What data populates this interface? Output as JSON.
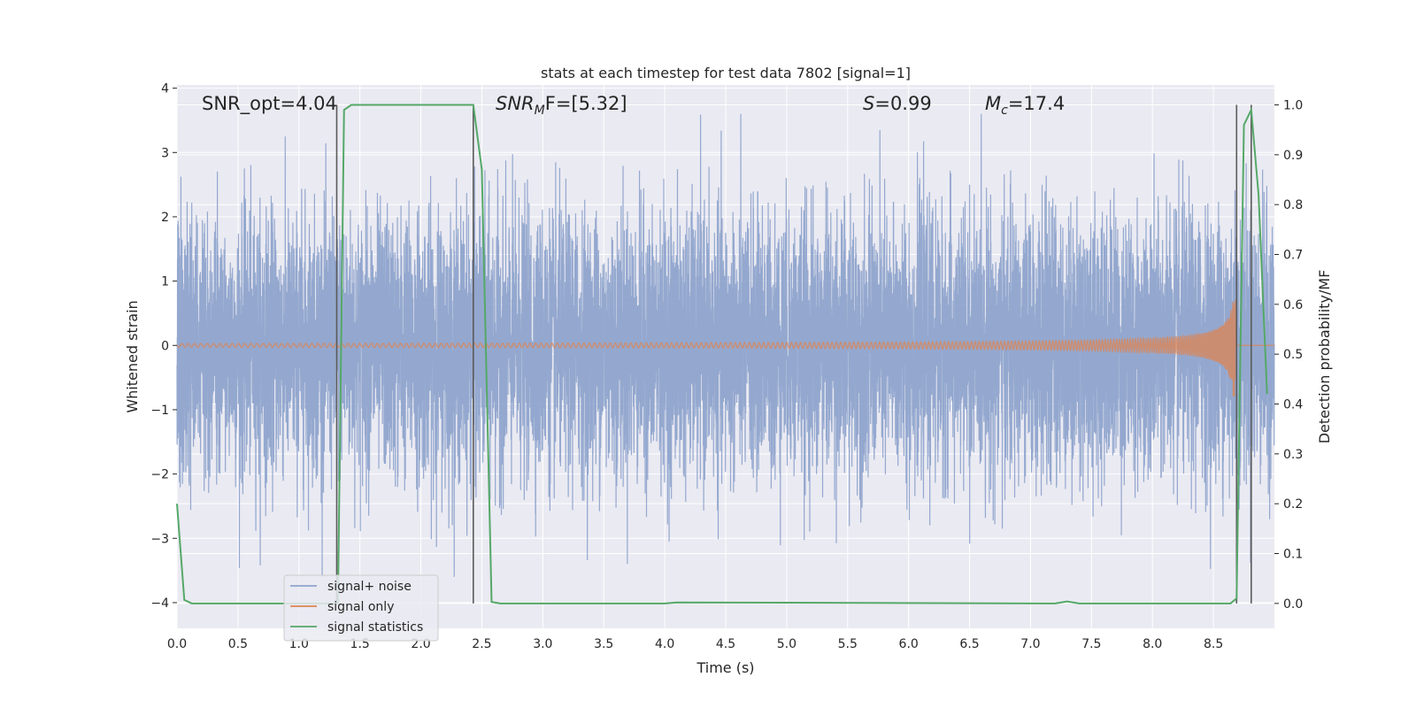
{
  "chart_data": {
    "type": "line",
    "title": "stats at each timestep for test data 7802 [signal=1]",
    "xlabel": "Time (s)",
    "ylabel": "Whitened strain",
    "ylabel_right": "Detection probability/MF",
    "xlim": [
      0.0,
      9.0
    ],
    "ylim": [
      -4.4,
      4.05
    ],
    "ylim_right": [
      -0.05,
      1.04
    ],
    "x_ticks": [
      "0.0",
      "0.5",
      "1.0",
      "1.5",
      "2.0",
      "2.5",
      "3.0",
      "3.5",
      "4.0",
      "4.5",
      "5.0",
      "5.5",
      "6.0",
      "6.5",
      "7.0",
      "7.5",
      "8.0",
      "8.5"
    ],
    "y_ticks": [
      "4",
      "3",
      "2",
      "1",
      "0",
      "−1",
      "−2",
      "−3",
      "−4"
    ],
    "y_right_ticks": [
      "1.0",
      "0.9",
      "0.8",
      "0.7",
      "0.6",
      "0.5",
      "0.4",
      "0.3",
      "0.2",
      "0.1",
      "0.0"
    ],
    "grid": true,
    "legend_position": "lower-left",
    "legend": [
      "signal+ noise",
      "signal only",
      "signal statistics"
    ],
    "annotations": {
      "snr_opt": "SNR_opt=4.04",
      "snr_mf_prefix": "SNR",
      "snr_mf_sub": "M",
      "snr_mf_suffix": "F=[5.32]",
      "s_name": "S",
      "s_value": "=0.99",
      "mc_name": "M",
      "mc_sub": "c",
      "mc_value": "=17.4"
    },
    "series": [
      {
        "name": "signal+ noise",
        "axis": "left",
        "color": "#8fa4cc",
        "sample_rate_hz": 1024,
        "std": 1.0,
        "peak_range": [
          -3.6,
          3.6
        ]
      },
      {
        "name": "signal only",
        "axis": "left",
        "color": "#dd8452",
        "chirp_end_time": 8.68,
        "peak_amplitude": 0.8
      },
      {
        "name": "signal statistics",
        "axis": "right",
        "color": "#55a868",
        "x": [
          0.0,
          0.06,
          0.12,
          1.28,
          1.32,
          1.37,
          1.43,
          2.43,
          2.5,
          2.58,
          2.65,
          4.0,
          4.1,
          7.2,
          7.3,
          7.4,
          8.64,
          8.69,
          8.75,
          8.81,
          8.87,
          8.94
        ],
        "y": [
          0.2,
          0.007,
          0.0,
          0.0,
          0.0,
          0.99,
          1.0,
          1.0,
          0.87,
          0.003,
          0.0,
          0.0,
          0.002,
          0.0,
          0.004,
          0.0,
          0.0,
          0.01,
          0.96,
          0.99,
          0.82,
          0.42
        ]
      }
    ],
    "vertical_markers": [
      {
        "x": 1.31,
        "y_top": 1.0,
        "y_bottom": 0.0
      },
      {
        "x": 2.43,
        "y_top": 1.0,
        "y_bottom": 0.0
      },
      {
        "x": 8.69,
        "y_top": 1.0,
        "y_bottom": 0.0
      },
      {
        "x": 8.81,
        "y_top": 1.0,
        "y_bottom": 0.0
      }
    ]
  }
}
